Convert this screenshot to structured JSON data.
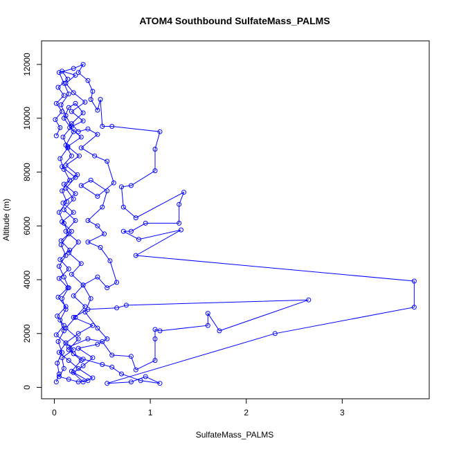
{
  "chart_data": {
    "type": "scatter",
    "title": "ATOM4 Southbound SulfateMass_PALMS",
    "xlabel": "SulfateMass_PALMS",
    "ylabel": "Altitude (m)",
    "xlim": [
      0,
      3.8
    ],
    "ylim": [
      0,
      12200
    ],
    "x_ticks": [
      0,
      1,
      2,
      3
    ],
    "y_ticks": [
      0,
      2000,
      4000,
      6000,
      8000,
      10000,
      12000
    ],
    "grid": false,
    "legend": "none",
    "colors": {
      "series": "#0000ff",
      "axes": "#000000",
      "background": "#ffffff"
    },
    "series": [
      {
        "style": "line+circle",
        "points": [
          [
            0.02,
            200
          ],
          [
            0.05,
            500
          ],
          [
            0.03,
            900
          ],
          [
            0.08,
            1300
          ],
          [
            0.04,
            1700
          ],
          [
            0.1,
            2100
          ],
          [
            0.06,
            2500
          ],
          [
            0.12,
            2900
          ],
          [
            0.08,
            3300
          ],
          [
            0.15,
            3700
          ],
          [
            0.1,
            4100
          ],
          [
            0.05,
            4500
          ],
          [
            0.12,
            4900
          ],
          [
            0.07,
            5300
          ],
          [
            0.15,
            5700
          ],
          [
            0.1,
            6100
          ],
          [
            0.05,
            6500
          ],
          [
            0.13,
            6900
          ],
          [
            0.08,
            7300
          ],
          [
            0.16,
            7700
          ],
          [
            0.1,
            8100
          ],
          [
            0.06,
            8500
          ],
          [
            0.14,
            8900
          ],
          [
            0.09,
            9300
          ],
          [
            0.18,
            9700
          ],
          [
            0.12,
            10100
          ],
          [
            0.07,
            10500
          ],
          [
            0.15,
            10900
          ],
          [
            0.1,
            11300
          ],
          [
            0.05,
            11700
          ],
          [
            0.2,
            11850
          ],
          [
            0.3,
            12000
          ],
          [
            0.25,
            11700
          ],
          [
            0.35,
            11400
          ],
          [
            0.4,
            11000
          ],
          [
            0.38,
            10700
          ],
          [
            0.45,
            10300
          ],
          [
            0.48,
            10700
          ],
          [
            0.5,
            9700
          ],
          [
            0.6,
            9700
          ],
          [
            1.1,
            9500
          ],
          [
            1.05,
            8850
          ],
          [
            1.05,
            8050
          ],
          [
            0.8,
            7500
          ],
          [
            0.7,
            7450
          ],
          [
            0.72,
            6700
          ],
          [
            0.85,
            6300
          ],
          [
            1.35,
            7250
          ],
          [
            1.3,
            6800
          ],
          [
            1.3,
            6100
          ],
          [
            0.95,
            6100
          ],
          [
            0.8,
            5800
          ],
          [
            0.72,
            5800
          ],
          [
            0.88,
            5500
          ],
          [
            1.32,
            5850
          ],
          [
            0.85,
            4900
          ],
          [
            3.75,
            3950
          ],
          [
            3.75,
            2980
          ],
          [
            2.3,
            2000
          ],
          [
            0.55,
            150
          ],
          [
            0.8,
            200
          ],
          [
            0.95,
            400
          ],
          [
            1.1,
            150
          ],
          [
            0.9,
            250
          ],
          [
            0.7,
            500
          ],
          [
            0.6,
            750
          ],
          [
            0.5,
            850
          ],
          [
            0.3,
            1050
          ],
          [
            0.2,
            1250
          ],
          [
            0.15,
            1500
          ],
          [
            0.35,
            1800
          ],
          [
            0.5,
            1700
          ],
          [
            0.6,
            1200
          ],
          [
            0.8,
            1150
          ],
          [
            0.85,
            650
          ],
          [
            1.05,
            1000
          ],
          [
            1.05,
            1800
          ],
          [
            1.05,
            2150
          ],
          [
            1.1,
            2100
          ],
          [
            1.6,
            2300
          ],
          [
            1.6,
            2750
          ],
          [
            1.72,
            2100
          ],
          [
            2.65,
            3250
          ],
          [
            0.75,
            3050
          ],
          [
            0.65,
            2950
          ],
          [
            0.35,
            2900
          ],
          [
            0.2,
            2600
          ],
          [
            0.4,
            2300
          ],
          [
            0.25,
            2000
          ],
          [
            0.12,
            1650
          ],
          [
            0.2,
            1400
          ],
          [
            0.08,
            1100
          ],
          [
            0.1,
            700
          ],
          [
            0.05,
            400
          ],
          [
            0.15,
            300
          ],
          [
            0.25,
            200
          ],
          [
            0.35,
            250
          ],
          [
            0.2,
            550
          ],
          [
            0.3,
            800
          ],
          [
            0.4,
            1100
          ],
          [
            0.25,
            1450
          ],
          [
            0.45,
            1600
          ],
          [
            0.55,
            1800
          ],
          [
            0.45,
            2200
          ],
          [
            0.32,
            2800
          ],
          [
            0.38,
            3300
          ],
          [
            0.3,
            3800
          ],
          [
            0.45,
            4100
          ],
          [
            0.55,
            3700
          ],
          [
            0.65,
            3900
          ],
          [
            0.58,
            4700
          ],
          [
            0.48,
            5200
          ],
          [
            0.35,
            5400
          ],
          [
            0.52,
            5700
          ],
          [
            0.45,
            6000
          ],
          [
            0.35,
            6200
          ],
          [
            0.5,
            6700
          ],
          [
            0.55,
            7300
          ],
          [
            0.38,
            7700
          ],
          [
            0.28,
            7500
          ],
          [
            0.45,
            7100
          ],
          [
            0.62,
            7600
          ],
          [
            0.55,
            8400
          ],
          [
            0.42,
            8600
          ],
          [
            0.28,
            8900
          ],
          [
            0.45,
            9400
          ],
          [
            0.35,
            9600
          ],
          [
            0.25,
            9500
          ],
          [
            0.18,
            9800
          ],
          [
            0.3,
            10200
          ],
          [
            0.22,
            10550
          ],
          [
            0.15,
            10400
          ],
          [
            0.1,
            10000
          ],
          [
            0.2,
            9500
          ],
          [
            0.12,
            9000
          ],
          [
            0.18,
            8600
          ],
          [
            0.08,
            8200
          ],
          [
            0.22,
            7800
          ],
          [
            0.12,
            7400
          ],
          [
            0.2,
            7000
          ],
          [
            0.1,
            6600
          ],
          [
            0.22,
            6200
          ],
          [
            0.12,
            5800
          ],
          [
            0.25,
            5400
          ],
          [
            0.15,
            5000
          ],
          [
            0.28,
            4600
          ],
          [
            0.18,
            4200
          ],
          [
            0.3,
            3800
          ],
          [
            0.2,
            3400
          ],
          [
            0.32,
            3000
          ],
          [
            0.22,
            2600
          ],
          [
            0.12,
            2200
          ],
          [
            0.25,
            1800
          ],
          [
            0.15,
            1400
          ],
          [
            0.28,
            1000
          ],
          [
            0.18,
            600
          ],
          [
            0.3,
            200
          ],
          [
            0.4,
            350
          ],
          [
            0.25,
            700
          ],
          [
            0.15,
            1000
          ],
          [
            0.05,
            1300
          ],
          [
            0.12,
            1650
          ],
          [
            0.02,
            1950
          ],
          [
            0.1,
            2300
          ],
          [
            0.03,
            2650
          ],
          [
            0.12,
            3000
          ],
          [
            0.04,
            3350
          ],
          [
            0.14,
            3700
          ],
          [
            0.05,
            4050
          ],
          [
            0.15,
            4400
          ],
          [
            0.06,
            4750
          ],
          [
            0.16,
            5100
          ],
          [
            0.07,
            5450
          ],
          [
            0.18,
            5800
          ],
          [
            0.08,
            6150
          ],
          [
            0.2,
            6500
          ],
          [
            0.09,
            6850
          ],
          [
            0.22,
            7200
          ],
          [
            0.1,
            7550
          ],
          [
            0.24,
            7900
          ],
          [
            0.12,
            8250
          ],
          [
            0.26,
            8600
          ],
          [
            0.14,
            8950
          ],
          [
            0.28,
            9300
          ],
          [
            0.16,
            9650
          ],
          [
            0.3,
            9900
          ],
          [
            0.18,
            10250
          ],
          [
            0.32,
            10600
          ],
          [
            0.2,
            10950
          ],
          [
            0.12,
            11300
          ],
          [
            0.22,
            11600
          ],
          [
            0.08,
            11750
          ],
          [
            0.14,
            11450
          ],
          [
            0.04,
            11150
          ],
          [
            0.1,
            10850
          ],
          [
            0.02,
            10550
          ],
          [
            0.08,
            10250
          ],
          [
            0.01,
            9950
          ],
          [
            0.06,
            9650
          ],
          [
            0.02,
            9350
          ]
        ]
      }
    ]
  }
}
